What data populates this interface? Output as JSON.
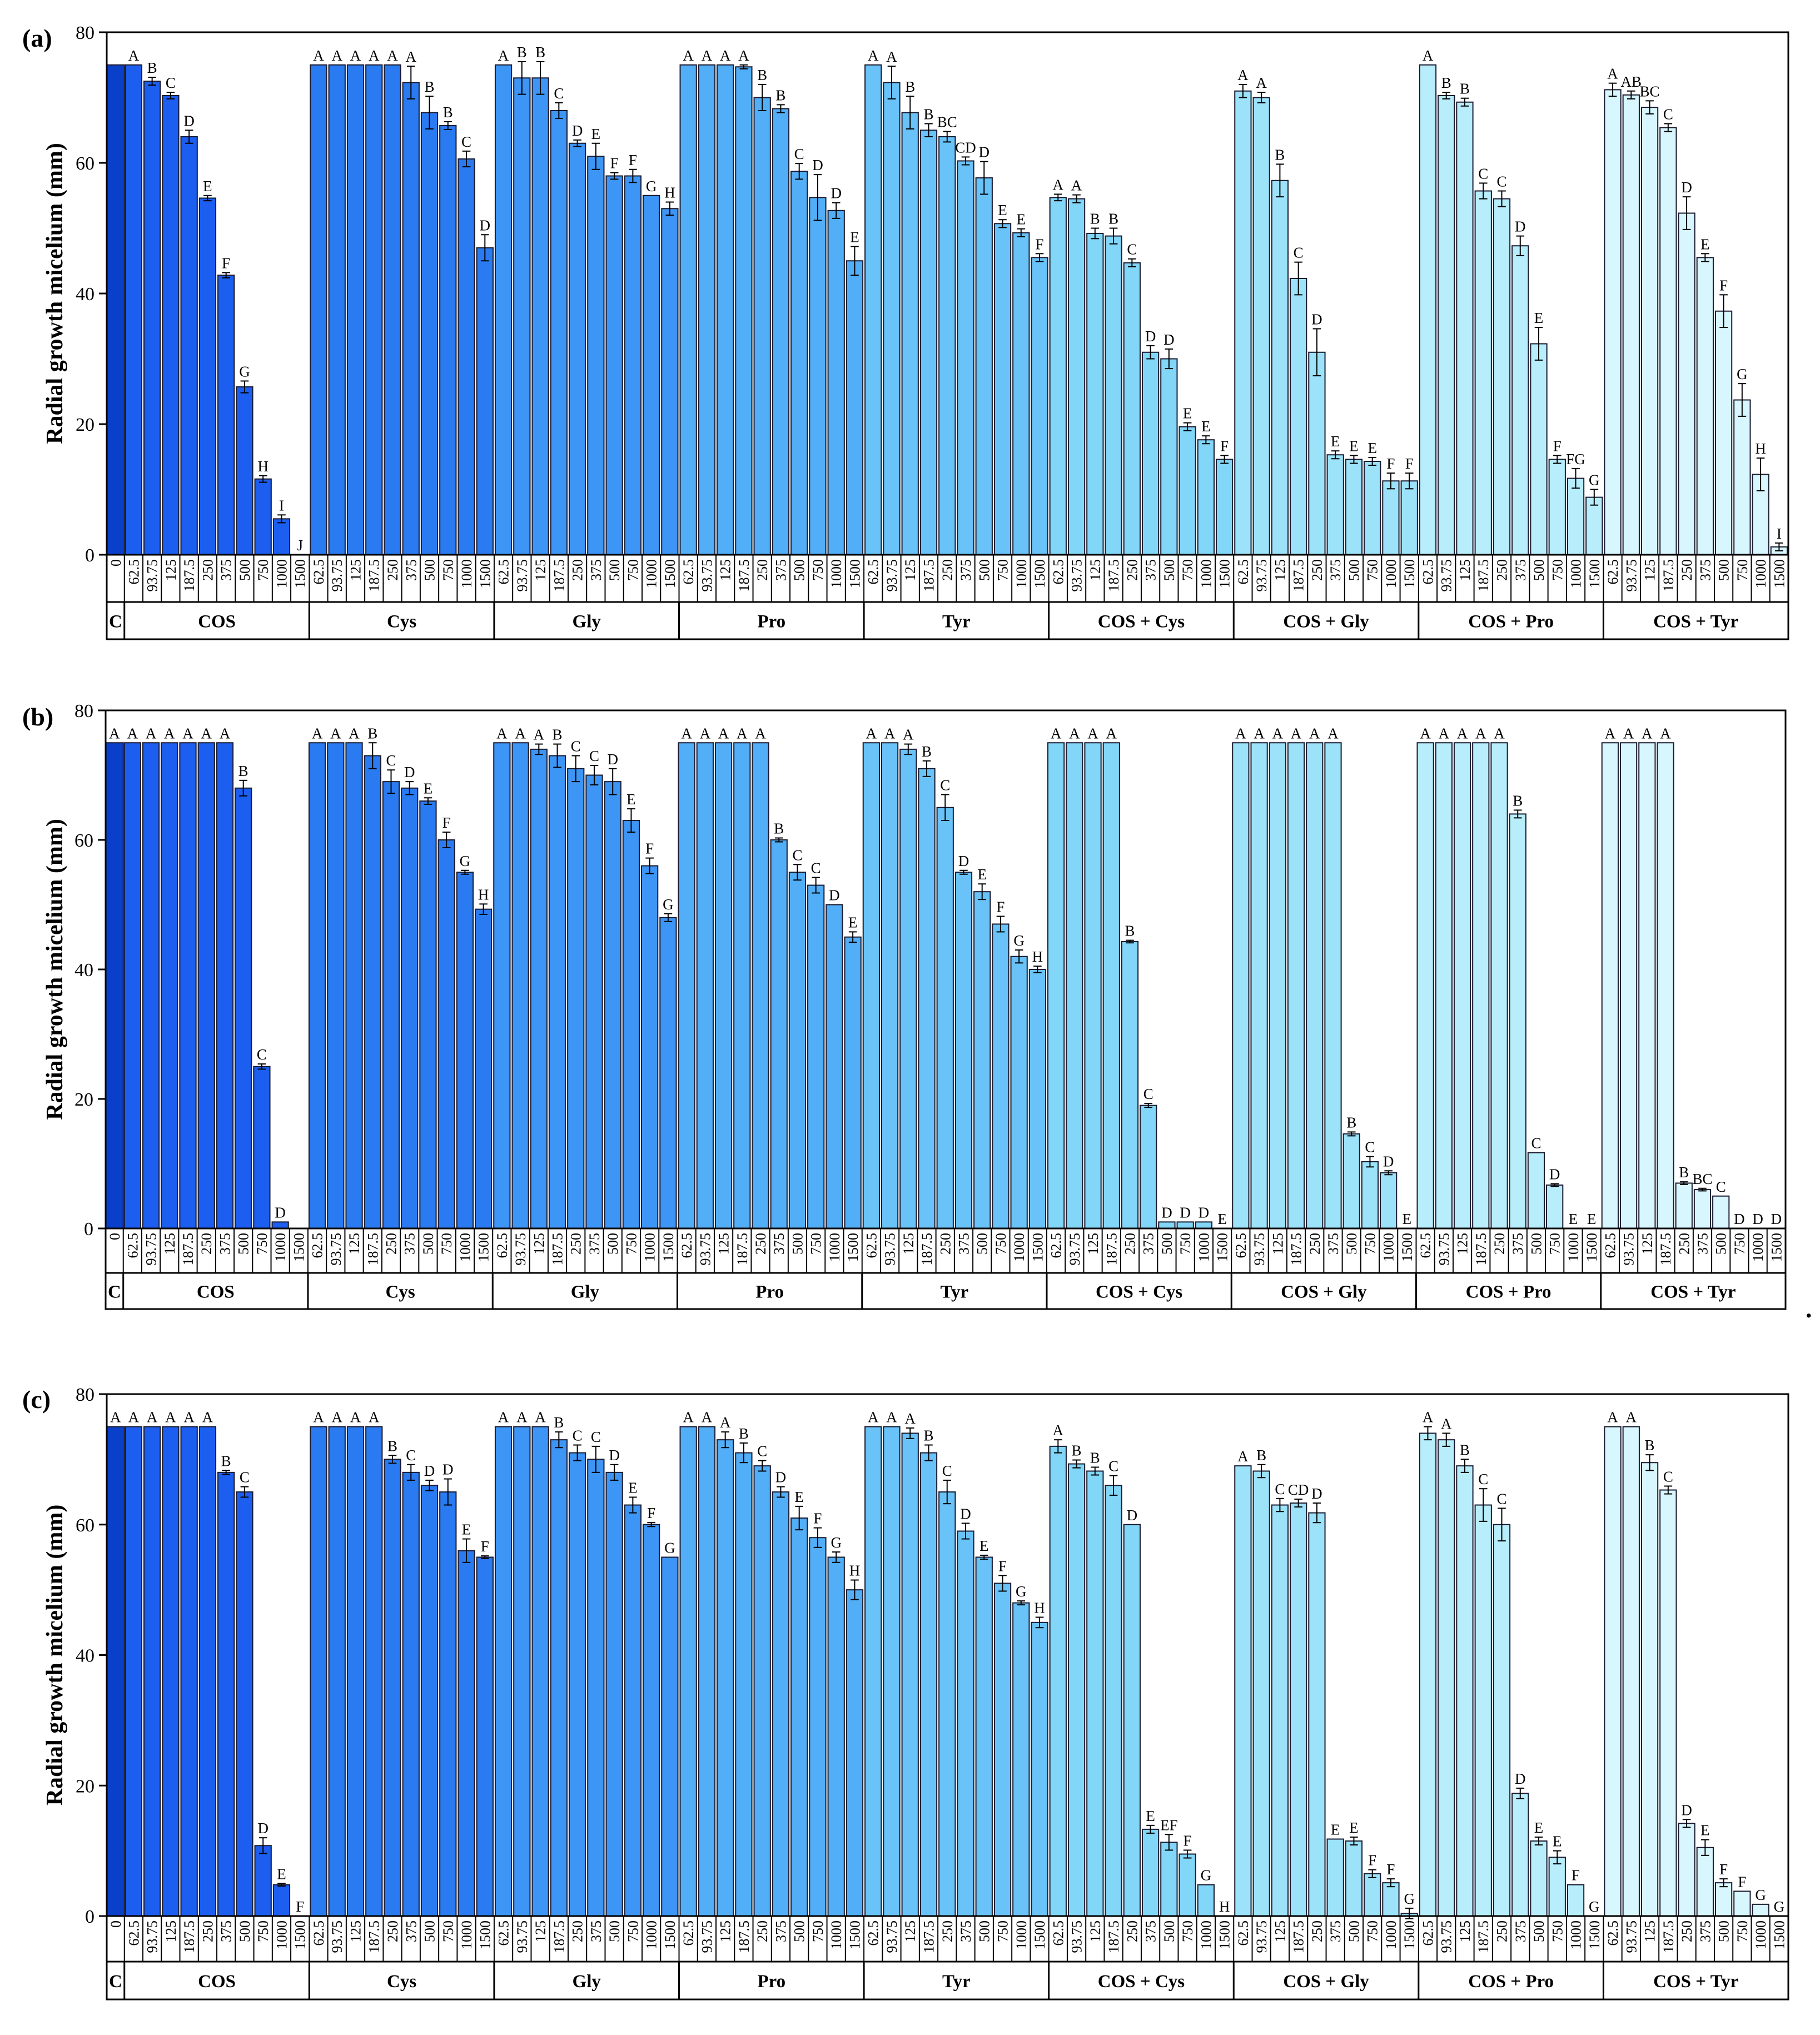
{
  "figure": {
    "trailing_mark": "."
  },
  "group_names": [
    "C",
    "COS",
    "Cys",
    "Gly",
    "Pro",
    "Tyr",
    "COS + Cys",
    "COS + Gly",
    "COS + Pro",
    "COS + Tyr"
  ],
  "group_colors": [
    "#0a3fc9",
    "#1c5ef0",
    "#2a7bf2",
    "#3d95f5",
    "#52aef7",
    "#69c3f8",
    "#82d6f8",
    "#9ce3fa",
    "#b8eefc",
    "#d7f6fe"
  ],
  "concentrations": [
    "62.5",
    "93.75",
    "125",
    "187.5",
    "250",
    "375",
    "500",
    "750",
    "1000",
    "1500"
  ],
  "control_label": "0",
  "chart_data": [
    {
      "type": "bar",
      "panel": "(a)",
      "ylabel": "Radial growth micelium (mm)",
      "ylim": [
        0,
        80
      ],
      "yticks": [
        "0",
        "20",
        "40",
        "60",
        "80"
      ],
      "control": {
        "value": 75,
        "error": 0,
        "letter": ""
      },
      "series": [
        {
          "name": "COS",
          "values": [
            75,
            72.5,
            70.3,
            64,
            54.6,
            42.8,
            25.7,
            11.6,
            5.5,
            0
          ],
          "errors": [
            0,
            0.6,
            0.5,
            1,
            0.4,
            0.4,
            0.9,
            0.5,
            0.6,
            0
          ],
          "letters": [
            "A",
            "B",
            "C",
            "D",
            "E",
            "F",
            "G",
            "H",
            "I",
            "J"
          ]
        },
        {
          "name": "Cys",
          "values": [
            75,
            75,
            75,
            75,
            75,
            72.3,
            67.7,
            65.7,
            60.6,
            47
          ],
          "errors": [
            0,
            0,
            0,
            0,
            0,
            2.5,
            2.5,
            0.6,
            1.2,
            2
          ],
          "letters": [
            "A",
            "A",
            "A",
            "A",
            "A",
            "A",
            "B",
            "B",
            "C",
            "D"
          ]
        },
        {
          "name": "Gly",
          "values": [
            75,
            73,
            73,
            68,
            63,
            61,
            58,
            58,
            55,
            53
          ],
          "errors": [
            0,
            2.5,
            2.5,
            1.2,
            0.5,
            2,
            0.5,
            1,
            0,
            1
          ],
          "letters": [
            "A",
            "B",
            "B",
            "C",
            "D",
            "E",
            "F",
            "F",
            "G",
            "H"
          ]
        },
        {
          "name": "Pro",
          "values": [
            75,
            75,
            75,
            74.7,
            70,
            68.3,
            58.7,
            54.7,
            52.7,
            45
          ],
          "errors": [
            0,
            0,
            0,
            0.3,
            2,
            0.6,
            1.2,
            3.5,
            1.2,
            2.2
          ],
          "letters": [
            "A",
            "A",
            "A",
            "A",
            "B",
            "B",
            "C",
            "D",
            "D",
            "E"
          ]
        },
        {
          "name": "Tyr",
          "values": [
            75,
            72.3,
            67.7,
            65,
            64,
            60.3,
            57.7,
            50.7,
            49.3,
            45.5
          ],
          "errors": [
            0,
            2.5,
            2.5,
            1,
            0.8,
            0.6,
            2.5,
            0.6,
            0.6,
            0.6
          ],
          "letters": [
            "A",
            "A",
            "B",
            "B",
            "BC",
            "CD",
            "D",
            "E",
            "E",
            "F"
          ]
        },
        {
          "name": "COS + Cys",
          "values": [
            54.7,
            54.5,
            49.2,
            48.8,
            44.7,
            31,
            30,
            19.6,
            17.6,
            14.6
          ],
          "errors": [
            0.5,
            0.6,
            0.8,
            1.2,
            0.6,
            1,
            1.5,
            0.6,
            0.6,
            0.6
          ],
          "letters": [
            "A",
            "A",
            "B",
            "B",
            "C",
            "D",
            "D",
            "E",
            "E",
            "F"
          ]
        },
        {
          "name": "COS + Gly",
          "values": [
            71,
            70,
            57.3,
            42.3,
            31,
            15.3,
            14.6,
            14.3,
            11.3,
            11.3
          ],
          "errors": [
            1,
            0.8,
            2.5,
            2.5,
            3.6,
            0.6,
            0.6,
            0.6,
            1.2,
            1.2
          ],
          "letters": [
            "A",
            "A",
            "B",
            "C",
            "D",
            "E",
            "E",
            "E",
            "F",
            "F"
          ]
        },
        {
          "name": "COS + Pro",
          "values": [
            75,
            70.3,
            69.3,
            55.7,
            54.5,
            47.3,
            32.3,
            14.6,
            11.7,
            8.8
          ],
          "errors": [
            0,
            0.5,
            0.6,
            1.2,
            1.2,
            1.5,
            2.5,
            0.6,
            1.5,
            1.2
          ],
          "letters": [
            "A",
            "B",
            "B",
            "C",
            "C",
            "D",
            "E",
            "F",
            "FG",
            "G"
          ]
        },
        {
          "name": "COS + Tyr",
          "values": [
            71.2,
            70.4,
            68.5,
            65.4,
            52.3,
            45.5,
            37.3,
            23.7,
            12.3,
            1.2
          ],
          "errors": [
            1,
            0.6,
            1,
            0.6,
            2.5,
            0.6,
            2.5,
            2.5,
            2.5,
            0.6
          ],
          "letters": [
            "A",
            "AB",
            "BC",
            "C",
            "D",
            "E",
            "F",
            "G",
            "H",
            "I"
          ]
        }
      ]
    },
    {
      "type": "bar",
      "panel": "(b)",
      "ylabel": "Radial growth micelium (mm)",
      "ylim": [
        0,
        80
      ],
      "yticks": [
        "0",
        "20",
        "40",
        "60",
        "80"
      ],
      "control": {
        "value": 75,
        "error": 0,
        "letter": "A"
      },
      "series": [
        {
          "name": "COS",
          "values": [
            75,
            75,
            75,
            75,
            75,
            75,
            68,
            25,
            1,
            0
          ],
          "errors": [
            0,
            0,
            0,
            0,
            0,
            0,
            1.2,
            0.4,
            0,
            0
          ],
          "letters": [
            "A",
            "A",
            "A",
            "A",
            "A",
            "A",
            "B",
            "C",
            "D",
            ""
          ]
        },
        {
          "name": "Cys",
          "values": [
            75,
            75,
            75,
            73,
            69,
            68,
            66,
            60,
            55,
            49.3
          ],
          "errors": [
            0,
            0,
            0,
            2,
            1.8,
            1,
            0.5,
            1.2,
            0.3,
            0.8
          ],
          "letters": [
            "A",
            "A",
            "A",
            "B",
            "C",
            "D",
            "E",
            "F",
            "G",
            "H"
          ]
        },
        {
          "name": "Gly",
          "values": [
            75,
            75,
            74,
            73,
            71,
            70,
            69,
            63,
            56,
            48
          ],
          "errors": [
            0,
            0,
            0.8,
            1.8,
            2,
            1.5,
            2,
            1.8,
            1.2,
            0.6
          ],
          "letters": [
            "A",
            "A",
            "A",
            "B",
            "C",
            "C",
            "D",
            "E",
            "F",
            "G"
          ]
        },
        {
          "name": "Pro",
          "values": [
            75,
            75,
            75,
            75,
            75,
            60,
            55,
            53,
            50,
            45
          ],
          "errors": [
            0,
            0,
            0,
            0,
            0,
            0.3,
            1.2,
            1.2,
            0,
            0.8
          ],
          "letters": [
            "A",
            "A",
            "A",
            "A",
            "A",
            "B",
            "C",
            "C",
            "D",
            "E"
          ]
        },
        {
          "name": "Tyr",
          "values": [
            75,
            75,
            74,
            71,
            65,
            55,
            52,
            47,
            42,
            40
          ],
          "errors": [
            0,
            0,
            0.8,
            1.2,
            2,
            0.3,
            1.2,
            1.2,
            1,
            0.5
          ],
          "letters": [
            "A",
            "A",
            "A",
            "B",
            "C",
            "D",
            "E",
            "F",
            "G",
            "H"
          ]
        },
        {
          "name": "COS + Cys",
          "values": [
            75,
            75,
            75,
            75,
            44.3,
            19,
            1,
            1,
            1,
            0
          ],
          "errors": [
            0,
            0,
            0,
            0,
            0.2,
            0.3,
            0,
            0,
            0,
            0
          ],
          "letters": [
            "A",
            "A",
            "A",
            "A",
            "B",
            "C",
            "D",
            "D",
            "D",
            "E"
          ]
        },
        {
          "name": "COS + Gly",
          "values": [
            75,
            75,
            75,
            75,
            75,
            75,
            14.6,
            10.3,
            8.6,
            0
          ],
          "errors": [
            0,
            0,
            0,
            0,
            0,
            0,
            0.3,
            0.8,
            0.3,
            0
          ],
          "letters": [
            "A",
            "A",
            "A",
            "A",
            "A",
            "A",
            "B",
            "C",
            "D",
            "E"
          ]
        },
        {
          "name": "COS + Pro",
          "values": [
            75,
            75,
            75,
            75,
            75,
            64,
            11.7,
            6.7,
            0,
            0
          ],
          "errors": [
            0,
            0,
            0,
            0,
            0,
            0.6,
            0,
            0.2,
            0,
            0
          ],
          "letters": [
            "A",
            "A",
            "A",
            "A",
            "A",
            "B",
            "C",
            "D",
            "E",
            "E"
          ]
        },
        {
          "name": "COS + Tyr",
          "values": [
            75,
            75,
            75,
            75,
            7,
            6,
            5,
            0,
            0,
            0
          ],
          "errors": [
            0,
            0,
            0,
            0,
            0.2,
            0.2,
            0,
            0,
            0,
            0
          ],
          "letters": [
            "A",
            "A",
            "A",
            "A",
            "B",
            "BC",
            "C",
            "D",
            "D",
            "D"
          ]
        }
      ]
    },
    {
      "type": "bar",
      "panel": "(c)",
      "ylabel": "Radial growth micelium (mm)",
      "ylim": [
        0,
        80
      ],
      "yticks": [
        "0",
        "20",
        "40",
        "60",
        "80"
      ],
      "control": {
        "value": 75,
        "error": 0,
        "letter": "A"
      },
      "series": [
        {
          "name": "COS",
          "values": [
            75,
            75,
            75,
            75,
            75,
            68,
            65,
            10.8,
            4.8,
            0
          ],
          "errors": [
            0,
            0,
            0,
            0,
            0,
            0.3,
            0.8,
            1.2,
            0.2,
            0
          ],
          "letters": [
            "A",
            "A",
            "A",
            "A",
            "A",
            "B",
            "C",
            "D",
            "E",
            "F"
          ]
        },
        {
          "name": "Cys",
          "values": [
            75,
            75,
            75,
            75,
            70,
            68,
            66,
            65,
            56,
            55
          ],
          "errors": [
            0,
            0,
            0,
            0,
            0.6,
            1.2,
            0.8,
            2,
            1.8,
            0.2
          ],
          "letters": [
            "A",
            "A",
            "A",
            "A",
            "B",
            "C",
            "D",
            "D",
            "E",
            "F"
          ]
        },
        {
          "name": "Gly",
          "values": [
            75,
            75,
            75,
            73,
            71,
            70,
            68,
            63,
            60,
            55
          ],
          "errors": [
            0,
            0,
            0,
            1.2,
            1.2,
            2,
            1.2,
            1.2,
            0.3,
            0
          ],
          "letters": [
            "A",
            "A",
            "A",
            "B",
            "C",
            "C",
            "D",
            "E",
            "F",
            "G"
          ]
        },
        {
          "name": "Pro",
          "values": [
            75,
            75,
            73,
            71,
            69,
            65,
            61,
            58,
            55,
            50
          ],
          "errors": [
            0,
            0,
            1.2,
            1.5,
            0.8,
            0.8,
            1.8,
            1.5,
            0.8,
            1.5
          ],
          "letters": [
            "A",
            "A",
            "A",
            "B",
            "C",
            "D",
            "E",
            "F",
            "G",
            "H"
          ]
        },
        {
          "name": "Tyr",
          "values": [
            75,
            75,
            74,
            71,
            65,
            59,
            55,
            51,
            48,
            45
          ],
          "errors": [
            0,
            0,
            0.8,
            1.2,
            1.8,
            1.2,
            0.3,
            1.2,
            0.3,
            0.8
          ],
          "letters": [
            "A",
            "A",
            "A",
            "B",
            "C",
            "D",
            "E",
            "F",
            "G",
            "H"
          ]
        },
        {
          "name": "COS + Cys",
          "values": [
            72,
            69.3,
            68.2,
            66,
            60,
            13.3,
            11.3,
            9.5,
            4.8,
            0
          ],
          "errors": [
            1,
            0.6,
            0.6,
            1.5,
            0,
            0.6,
            1.2,
            0.6,
            0,
            0
          ],
          "letters": [
            "A",
            "B",
            "B",
            "C",
            "D",
            "E",
            "EF",
            "F",
            "G",
            "H"
          ]
        },
        {
          "name": "COS + Gly",
          "values": [
            69,
            68.2,
            63,
            63.3,
            61.8,
            11.8,
            11.5,
            6.5,
            5.1,
            0.4
          ],
          "errors": [
            0,
            1,
            1,
            0.6,
            1.5,
            0,
            0.6,
            0.6,
            0.6,
            0.8
          ],
          "letters": [
            "A",
            "B",
            "C",
            "CD",
            "D",
            "E",
            "E",
            "F",
            "F",
            "G"
          ]
        },
        {
          "name": "COS + Pro",
          "values": [
            74,
            73,
            69,
            63,
            60,
            18.8,
            11.5,
            9,
            4.8,
            0
          ],
          "errors": [
            1,
            1,
            1,
            2.5,
            2.5,
            0.8,
            0.6,
            1,
            0,
            0
          ],
          "letters": [
            "A",
            "A",
            "B",
            "C",
            "C",
            "D",
            "E",
            "E",
            "F",
            "G"
          ]
        },
        {
          "name": "COS + Tyr",
          "values": [
            75,
            75,
            69.5,
            65.3,
            14.2,
            10.5,
            5.1,
            3.8,
            1.8,
            0
          ],
          "errors": [
            0,
            0,
            1.2,
            0.6,
            0.6,
            1.2,
            0.6,
            0,
            0,
            0
          ],
          "letters": [
            "A",
            "A",
            "B",
            "C",
            "D",
            "E",
            "F",
            "F",
            "G",
            "G"
          ]
        }
      ]
    }
  ]
}
